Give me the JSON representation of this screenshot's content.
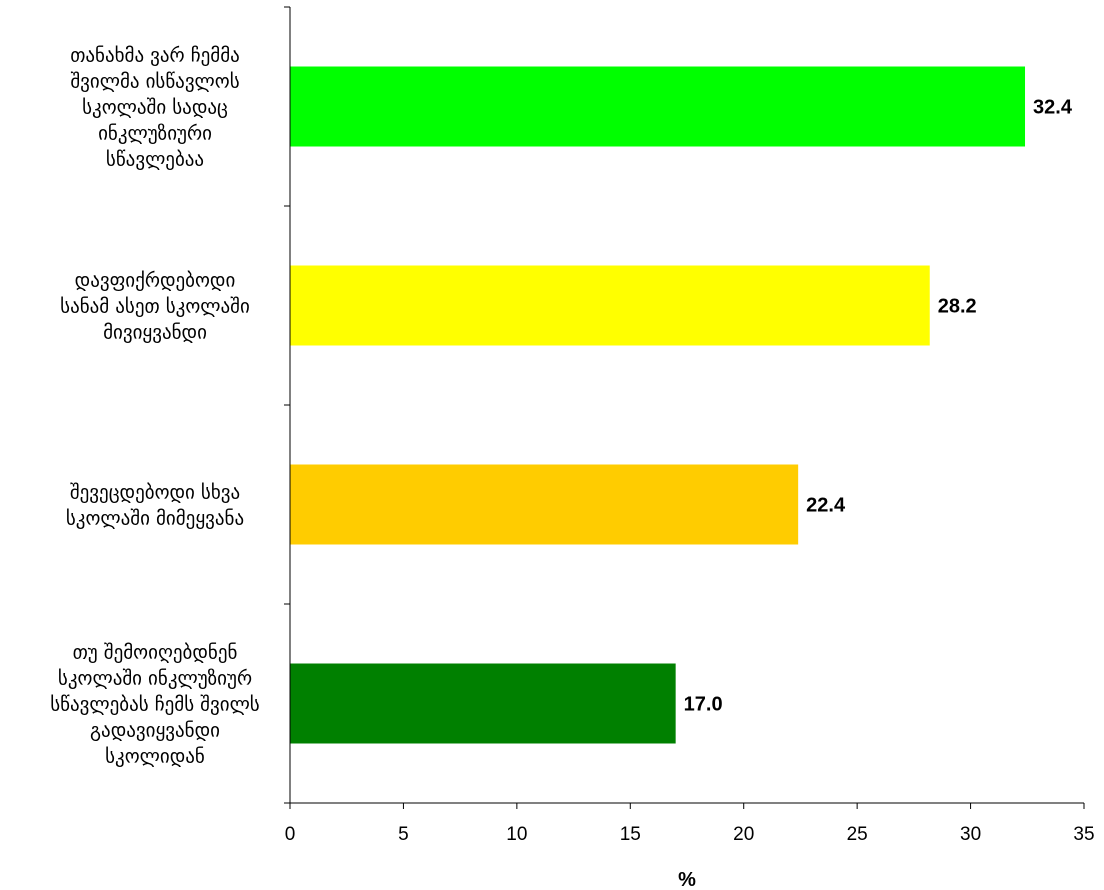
{
  "chart_data": {
    "type": "bar",
    "orientation": "horizontal",
    "categories": [
      "თანახმა ვარ ჩემმა შვილმა ისწავლოს სკოლაში სადაც ინკლუზიური სწავლებაა",
      "დავფიქრდებოდი სანამ ასეთ სკოლაში მივიყვანდი",
      "შევეცდებოდი სხვა სკოლაში მიმეყვანა",
      "თუ შემოიღებდნენ სკოლაში ინკლუზიურ სწავლებას ჩემს შვილს გადავიყვანდი სკოლიდან"
    ],
    "category_lines": [
      [
        "თანახმა ვარ ჩემმა",
        "შვილმა ისწავლოს",
        "სკოლაში სადაც",
        "ინკლუზიური",
        "სწავლებაა"
      ],
      [
        "დავფიქრდებოდი",
        "სანამ ასეთ სკოლაში",
        "მივიყვანდი"
      ],
      [
        "შევეცდებოდი სხვა",
        "სკოლაში მიმეყვანა"
      ],
      [
        "თუ შემოიღებდნენ",
        "სკოლაში ინკლუზიურ",
        "სწავლებას ჩემს შვილს",
        "გადავიყვანდი",
        "სკოლიდან"
      ]
    ],
    "values": [
      32.4,
      28.2,
      22.4,
      17.0
    ],
    "value_labels": [
      "32.4",
      "28.2",
      "22.4",
      "17.0"
    ],
    "colors": [
      "#00ff00",
      "#ffff00",
      "#ffcc00",
      "#008000"
    ],
    "xlabel": "%",
    "xlim": [
      0,
      35
    ],
    "xticks": [
      0,
      5,
      10,
      15,
      20,
      25,
      30,
      35
    ],
    "grid": false,
    "legend": "none"
  }
}
